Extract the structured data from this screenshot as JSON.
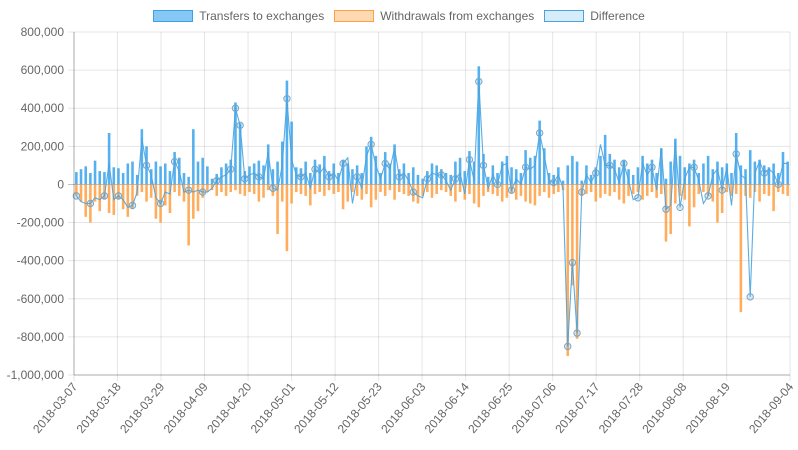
{
  "chart_data": {
    "type": "bar",
    "title": "",
    "xlabel": "",
    "ylabel": "",
    "ylim": [
      -1000000,
      800000
    ],
    "yticks": [
      "800,000",
      "600,000",
      "400,000",
      "200,000",
      "0",
      "-200,000",
      "-400,000",
      "-600,000",
      "-800,000",
      "-1,000,000"
    ],
    "ytick_values": [
      800000,
      600000,
      400000,
      200000,
      0,
      -200000,
      -400000,
      -600000,
      -800000,
      -1000000
    ],
    "x_start": "2018-03-07",
    "x_end": "2018-09-04",
    "xticks": [
      "2018-03-07",
      "2018-03-18",
      "2018-03-29",
      "2018-04-09",
      "2018-04-20",
      "2018-05-01",
      "2018-05-12",
      "2018-05-23",
      "2018-06-03",
      "2018-06-14",
      "2018-06-25",
      "2018-07-06",
      "2018-07-17",
      "2018-07-28",
      "2018-08-08",
      "2018-08-19",
      "2018-09-04"
    ],
    "grid": true,
    "legend_position": "top",
    "series": [
      {
        "name": "Transfers to exchanges",
        "type": "bar",
        "color": "#36a2eb",
        "fill": "rgba(54,162,235,0.6)",
        "values": [
          65000,
          80000,
          95000,
          60000,
          125000,
          70000,
          65000,
          270000,
          90000,
          85000,
          60000,
          110000,
          120000,
          50000,
          290000,
          200000,
          80000,
          120000,
          95000,
          110000,
          70000,
          170000,
          140000,
          60000,
          40000,
          290000,
          120000,
          140000,
          95000,
          30000,
          55000,
          90000,
          110000,
          130000,
          430000,
          320000,
          70000,
          95000,
          110000,
          125000,
          100000,
          210000,
          80000,
          120000,
          225000,
          545000,
          330000,
          90000,
          85000,
          120000,
          60000,
          130000,
          105000,
          150000,
          70000,
          110000,
          60000,
          130000,
          110000,
          80000,
          100000,
          60000,
          200000,
          250000,
          150000,
          60000,
          170000,
          110000,
          210000,
          80000,
          110000,
          60000,
          90000,
          50000,
          30000,
          70000,
          110000,
          100000,
          80000,
          60000,
          50000,
          120000,
          140000,
          70000,
          175000,
          120000,
          620000,
          160000,
          40000,
          100000,
          60000,
          120000,
          150000,
          90000,
          80000,
          60000,
          180000,
          140000,
          150000,
          335000,
          190000,
          60000,
          50000,
          90000,
          20000,
          100000,
          150000,
          120000,
          20000,
          100000,
          50000,
          90000,
          150000,
          260000,
          160000,
          130000,
          90000,
          130000,
          80000,
          50000,
          90000,
          150000,
          110000,
          130000,
          60000,
          190000,
          30000,
          120000,
          240000,
          150000,
          90000,
          110000,
          130000,
          60000,
          110000,
          150000,
          80000,
          120000,
          90000,
          110000,
          60000,
          270000,
          100000,
          80000,
          180000,
          120000,
          130000,
          100000,
          90000,
          110000,
          60000,
          170000,
          120000
        ]
      },
      {
        "name": "Withdrawals from exchanges",
        "type": "bar",
        "color": "#ff9f40",
        "fill": "rgba(255,159,64,0.6)",
        "values": [
          -60000,
          -90000,
          -170000,
          -200000,
          -90000,
          -140000,
          -80000,
          -150000,
          -160000,
          -80000,
          -130000,
          -170000,
          -130000,
          -60000,
          -40000,
          -90000,
          -70000,
          -180000,
          -200000,
          -110000,
          -150000,
          -40000,
          -60000,
          -90000,
          -320000,
          -180000,
          -140000,
          -70000,
          -40000,
          -30000,
          -60000,
          -40000,
          -60000,
          -40000,
          -30000,
          -50000,
          -60000,
          -40000,
          -50000,
          -90000,
          -70000,
          -30000,
          -60000,
          -260000,
          -90000,
          -350000,
          -100000,
          -40000,
          -50000,
          -60000,
          -110000,
          -50000,
          -40000,
          -60000,
          -30000,
          -50000,
          -40000,
          -130000,
          -90000,
          -40000,
          -60000,
          -80000,
          -50000,
          -120000,
          -80000,
          -40000,
          -60000,
          -30000,
          -80000,
          -40000,
          -50000,
          -60000,
          -90000,
          -100000,
          -60000,
          -40000,
          -70000,
          -50000,
          -30000,
          -40000,
          -60000,
          -90000,
          -40000,
          -80000,
          -50000,
          -100000,
          -120000,
          -60000,
          -40000,
          -50000,
          -60000,
          -90000,
          -70000,
          -50000,
          -80000,
          -60000,
          -90000,
          -100000,
          -110000,
          -60000,
          -40000,
          -70000,
          -50000,
          -40000,
          -30000,
          -900000,
          -530000,
          -810000,
          -60000,
          -50000,
          -40000,
          -90000,
          -70000,
          -50000,
          -60000,
          -40000,
          -80000,
          -100000,
          -60000,
          -50000,
          -40000,
          -80000,
          -60000,
          -40000,
          -70000,
          -50000,
          -300000,
          -260000,
          -100000,
          -60000,
          -80000,
          -220000,
          -120000,
          -50000,
          -40000,
          -60000,
          -90000,
          -200000,
          -150000,
          -40000,
          -60000,
          -50000,
          -670000,
          -60000,
          -70000,
          -40000,
          -90000,
          -50000,
          -60000,
          -140000,
          -40000,
          -50000,
          -60000,
          -50000
        ]
      },
      {
        "name": "Difference",
        "type": "line",
        "color": "#4aa3df",
        "fill": "rgba(54,162,235,0.2)",
        "values": [
          -60000,
          -90000,
          -100000,
          -100000,
          -70000,
          -80000,
          -60000,
          110000,
          -80000,
          -60000,
          -80000,
          -120000,
          -110000,
          -40000,
          240000,
          100000,
          50000,
          -70000,
          -100000,
          -40000,
          -50000,
          120000,
          70000,
          -40000,
          -30000,
          -40000,
          -30000,
          -40000,
          -40000,
          -20000,
          20000,
          40000,
          50000,
          80000,
          400000,
          310000,
          30000,
          50000,
          60000,
          40000,
          30000,
          170000,
          -20000,
          -30000,
          100000,
          450000,
          130000,
          50000,
          40000,
          60000,
          -20000,
          80000,
          60000,
          90000,
          40000,
          60000,
          20000,
          110000,
          140000,
          -100000,
          40000,
          -20000,
          150000,
          210000,
          100000,
          30000,
          110000,
          80000,
          190000,
          40000,
          60000,
          20000,
          -40000,
          -60000,
          -70000,
          30000,
          60000,
          50000,
          50000,
          20000,
          -30000,
          30000,
          60000,
          -50000,
          130000,
          20000,
          540000,
          100000,
          -20000,
          50000,
          0,
          100000,
          110000,
          -30000,
          30000,
          0,
          90000,
          80000,
          100000,
          270000,
          150000,
          20000,
          10000,
          50000,
          -20000,
          -850000,
          -410000,
          -780000,
          -40000,
          50000,
          10000,
          60000,
          210000,
          100000,
          100000,
          80000,
          10000,
          110000,
          20000,
          -80000,
          -70000,
          110000,
          50000,
          90000,
          -30000,
          190000,
          -130000,
          -110000,
          220000,
          -120000,
          30000,
          90000,
          90000,
          20000,
          -100000,
          -60000,
          50000,
          80000,
          -30000,
          90000,
          -110000,
          160000,
          50000,
          30000,
          -590000,
          60000,
          120000,
          60000,
          80000,
          60000,
          0,
          110000,
          110000
        ]
      }
    ]
  },
  "legend": [
    {
      "label": "Transfers to exchanges",
      "fill": "rgba(54,162,235,0.6)",
      "border": "#36a2eb"
    },
    {
      "label": "Withdrawals from exchanges",
      "fill": "rgba(255,159,64,0.4)",
      "border": "#ff9f40"
    },
    {
      "label": "Difference",
      "fill": "rgba(54,162,235,0.2)",
      "border": "#4aa3df"
    }
  ]
}
